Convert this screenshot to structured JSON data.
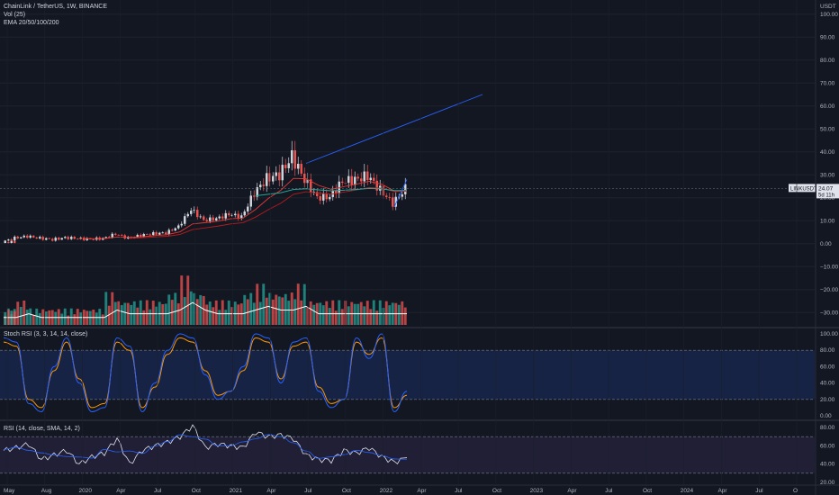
{
  "header": {
    "symbol_line": "ChainLink / TetherUS, 1W, BINANCE",
    "indicator_1": "Vol (25)",
    "indicator_2": "EMA 20/50/100/200"
  },
  "price_axis": {
    "unit_label": "USDT",
    "ticks": [
      "100.00",
      "90.00",
      "80.00",
      "70.00",
      "60.00",
      "50.00",
      "40.00",
      "30.00",
      "20.00",
      "10.00",
      "0.00",
      "−10.00",
      "−20.00",
      "−30.00"
    ],
    "last_price_tag": "LINKUSDT",
    "last_price": "24.07",
    "countdown": "5d 11h"
  },
  "stoch_panel": {
    "label": "Stoch RSI (3, 3, 14, 14, close)",
    "ticks": [
      "100.00",
      "80.00",
      "60.00",
      "40.00",
      "20.00",
      "0.00"
    ]
  },
  "rsi_panel": {
    "label": "RSI (14, close, SMA, 14, 2)",
    "ticks": [
      "80.00",
      "60.00",
      "40.00",
      "20.00"
    ]
  },
  "time_axis": {
    "labels": [
      "May",
      "Aug",
      "2020",
      "Apr",
      "Jul",
      "Oct",
      "2021",
      "Apr",
      "Jul",
      "Oct",
      "2022",
      "Apr",
      "Jul",
      "Oct",
      "2023",
      "Apr",
      "Jul",
      "Oct",
      "2024",
      "Apr",
      "Jul",
      "O"
    ]
  },
  "colors": {
    "background": "#131722",
    "up": "#26a69a",
    "down": "#ef5350",
    "candle_up": "#d1d4dc",
    "ema_red": "#e53935",
    "ema_teal": "#26a69a",
    "trendline": "#2962ff",
    "stoch_k": "#2962ff",
    "stoch_d": "#ff9800",
    "rsi_line": "#e0e3eb",
    "rsi_band": "#7e57c2",
    "stoch_band": "#2962ff"
  },
  "chart_data": {
    "type": "candlestick",
    "timeframe": "1W",
    "ylim": [
      -35,
      105
    ],
    "x": [
      "2019-05",
      "2019-06",
      "2019-07",
      "2019-08",
      "2019-09",
      "2019-10",
      "2019-11",
      "2019-12",
      "2020-01",
      "2020-02",
      "2020-03",
      "2020-04",
      "2020-05",
      "2020-06",
      "2020-07",
      "2020-08",
      "2020-09",
      "2020-10",
      "2020-11",
      "2020-12",
      "2021-01",
      "2021-02",
      "2021-03",
      "2021-04",
      "2021-05",
      "2021-06",
      "2021-07",
      "2021-08",
      "2021-09",
      "2021-10",
      "2021-11",
      "2021-12",
      "2022-01"
    ],
    "close": [
      0.7,
      2.5,
      3.2,
      2.4,
      1.8,
      2.6,
      2.3,
      1.9,
      2.3,
      4.2,
      2.4,
      3.6,
      4.4,
      4.7,
      7.5,
      15.0,
      10.2,
      11.0,
      12.8,
      11.7,
      22.0,
      28.5,
      30.0,
      38.0,
      28.0,
      20.0,
      20.5,
      27.0,
      28.0,
      29.5,
      23.5,
      17.5,
      24.07
    ],
    "series": [
      {
        "name": "Vol",
        "values": [
          2,
          2,
          3,
          2,
          2,
          2,
          2,
          2,
          2,
          4,
          3,
          3,
          3,
          3,
          4,
          6,
          4,
          3,
          3,
          3,
          4,
          5,
          4,
          4,
          5,
          3,
          3,
          3,
          3,
          3,
          3,
          3,
          3
        ]
      }
    ],
    "trendlines": [
      {
        "from": [
          "2021-05",
          35
        ],
        "to": [
          "2022-07",
          65
        ]
      },
      {
        "from": [
          "2021-12",
          16
        ],
        "to": [
          "2022-01",
          28
        ]
      }
    ],
    "stoch_rsi": {
      "k": [
        95,
        90,
        15,
        5,
        60,
        95,
        40,
        5,
        10,
        95,
        85,
        5,
        40,
        80,
        100,
        95,
        50,
        20,
        30,
        60,
        100,
        95,
        40,
        90,
        95,
        30,
        10,
        20,
        95,
        70,
        100,
        5,
        30
      ],
      "d": [
        90,
        85,
        20,
        10,
        55,
        90,
        45,
        10,
        15,
        90,
        80,
        10,
        35,
        75,
        95,
        90,
        55,
        25,
        30,
        55,
        95,
        90,
        45,
        85,
        90,
        35,
        15,
        20,
        90,
        75,
        95,
        10,
        25
      ],
      "upper": 80,
      "lower": 20
    },
    "rsi": {
      "values": [
        55,
        58,
        62,
        45,
        50,
        55,
        40,
        48,
        52,
        68,
        40,
        55,
        60,
        64,
        70,
        82,
        58,
        62,
        60,
        58,
        75,
        70,
        72,
        68,
        50,
        45,
        44,
        55,
        52,
        58,
        48,
        42,
        47
      ],
      "upper": 70,
      "lower": 30
    }
  }
}
